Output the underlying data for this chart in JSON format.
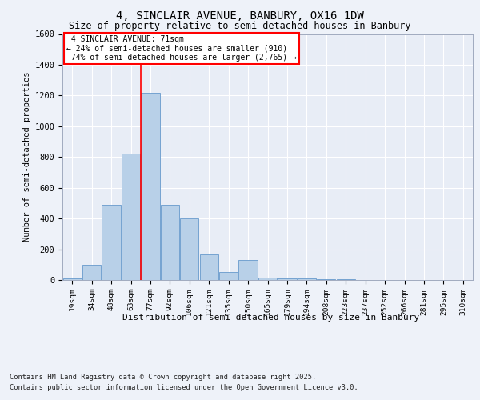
{
  "title_line1": "4, SINCLAIR AVENUE, BANBURY, OX16 1DW",
  "title_line2": "Size of property relative to semi-detached houses in Banbury",
  "xlabel": "Distribution of semi-detached houses by size in Banbury",
  "ylabel": "Number of semi-detached properties",
  "categories": [
    "19sqm",
    "34sqm",
    "48sqm",
    "63sqm",
    "77sqm",
    "92sqm",
    "106sqm",
    "121sqm",
    "135sqm",
    "150sqm",
    "165sqm",
    "179sqm",
    "194sqm",
    "208sqm",
    "223sqm",
    "237sqm",
    "252sqm",
    "266sqm",
    "281sqm",
    "295sqm",
    "310sqm"
  ],
  "values": [
    10,
    100,
    490,
    820,
    1220,
    490,
    400,
    165,
    50,
    130,
    15,
    10,
    10,
    5,
    5,
    2,
    2,
    1,
    1,
    0,
    0
  ],
  "bar_color": "#b8d0e8",
  "bar_edgecolor": "#6699cc",
  "property_size": 71,
  "property_label": "4 SINCLAIR AVENUE: 71sqm",
  "pct_smaller": 24,
  "pct_larger": 74,
  "count_smaller": 910,
  "count_larger": 2765,
  "vline_bin_index": 3.5,
  "ylim": [
    0,
    1600
  ],
  "yticks": [
    0,
    200,
    400,
    600,
    800,
    1000,
    1200,
    1400,
    1600
  ],
  "background_color": "#eef2f9",
  "plot_bg_color": "#e8edf6",
  "footer_line1": "Contains HM Land Registry data © Crown copyright and database right 2025.",
  "footer_line2": "Contains public sector information licensed under the Open Government Licence v3.0."
}
